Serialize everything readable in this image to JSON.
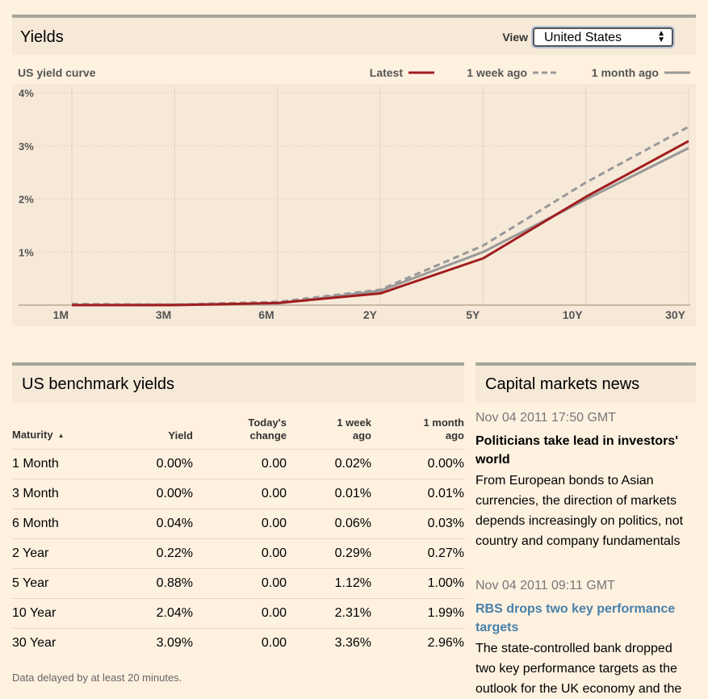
{
  "yields_panel": {
    "title": "Yields",
    "view_label": "View",
    "view_value": "United States"
  },
  "chart_data": {
    "type": "line",
    "title": "US yield curve",
    "categories": [
      "1M",
      "3M",
      "6M",
      "2Y",
      "5Y",
      "10Y",
      "30Y"
    ],
    "y_ticks": [
      "4%",
      "3%",
      "2%",
      "1%"
    ],
    "ylim": [
      0,
      4
    ],
    "grid": true,
    "legend_position": "top-right",
    "series": [
      {
        "name": "Latest",
        "values": [
          0.0,
          0.0,
          0.04,
          0.22,
          0.88,
          2.04,
          3.09
        ],
        "color": "#a11d1f",
        "style": "solid"
      },
      {
        "name": "1 week ago",
        "values": [
          0.02,
          0.01,
          0.06,
          0.29,
          1.12,
          2.31,
          3.36
        ],
        "color": "#999999",
        "style": "dashed"
      },
      {
        "name": "1 month ago",
        "values": [
          0.0,
          0.01,
          0.03,
          0.27,
          1.0,
          1.99,
          2.96
        ],
        "color": "#999999",
        "style": "solid"
      }
    ]
  },
  "benchmark": {
    "title": "US benchmark yields",
    "headers": {
      "maturity": "Maturity",
      "yield": "Yield",
      "change_1": "Today's",
      "change_2": "change",
      "week_1": "1 week",
      "week_2": "ago",
      "month_1": "1 month",
      "month_2": "ago"
    },
    "rows": [
      {
        "maturity": "1 Month",
        "yield": "0.00%",
        "change": "0.00",
        "week": "0.02%",
        "month": "0.00%"
      },
      {
        "maturity": "3 Month",
        "yield": "0.00%",
        "change": "0.00",
        "week": "0.01%",
        "month": "0.01%"
      },
      {
        "maturity": "6 Month",
        "yield": "0.04%",
        "change": "0.00",
        "week": "0.06%",
        "month": "0.03%"
      },
      {
        "maturity": "2 Year",
        "yield": "0.22%",
        "change": "0.00",
        "week": "0.29%",
        "month": "0.27%"
      },
      {
        "maturity": "5 Year",
        "yield": "0.88%",
        "change": "0.00",
        "week": "1.12%",
        "month": "1.00%"
      },
      {
        "maturity": "10 Year",
        "yield": "2.04%",
        "change": "0.00",
        "week": "2.31%",
        "month": "1.99%"
      },
      {
        "maturity": "30 Year",
        "yield": "3.09%",
        "change": "0.00",
        "week": "3.36%",
        "month": "2.96%"
      }
    ],
    "footnote": "Data delayed by at least 20 minutes."
  },
  "news": {
    "title": "Capital markets news",
    "items": [
      {
        "date": "Nov 04 2011 17:50 GMT",
        "headline": "Politicians take lead in investors' world",
        "body": "From European bonds to Asian currencies, the direction of markets depends increasingly on politics, not country and company fundamentals"
      },
      {
        "date": "Nov 04 2011 09:11 GMT",
        "headline": "RBS drops two key performance targets",
        "body": "The state-controlled bank dropped two key performance targets as the outlook for the UK economy and the"
      }
    ]
  }
}
